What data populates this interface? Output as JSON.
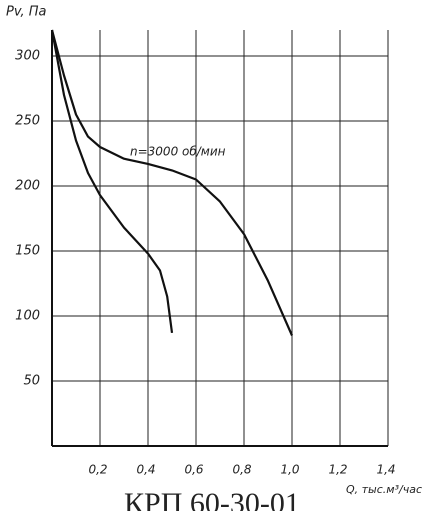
{
  "chart_data": {
    "type": "line",
    "title": "КРП 60-30-01",
    "y_label": "Pv, Па",
    "x_label": "Q, тыс.м³/час",
    "annotation": "n=3000 об/мин",
    "xlim": [
      0,
      1.4
    ],
    "ylim": [
      0,
      320
    ],
    "xticks": [
      {
        "value": 0.2,
        "label": "0,2"
      },
      {
        "value": 0.4,
        "label": "0,4"
      },
      {
        "value": 0.6,
        "label": "0,6"
      },
      {
        "value": 0.8,
        "label": "0,8"
      },
      {
        "value": 1.0,
        "label": "1,0"
      },
      {
        "value": 1.2,
        "label": "1,2"
      },
      {
        "value": 1.4,
        "label": "1,4"
      }
    ],
    "yticks": [
      50,
      100,
      150,
      200,
      250,
      300
    ],
    "grid": true,
    "series": [
      {
        "color": "#111111",
        "x": [
          0,
          0.05,
          0.1,
          0.15,
          0.2,
          0.3,
          0.4,
          0.5,
          0.6,
          0.7,
          0.8,
          0.9,
          1.0
        ],
        "values": [
          320,
          285,
          255,
          238,
          230,
          221,
          217,
          212,
          205,
          188,
          163,
          127,
          85
        ]
      },
      {
        "color": "#111111",
        "x": [
          0,
          0.05,
          0.1,
          0.15,
          0.2,
          0.3,
          0.4,
          0.45,
          0.48,
          0.5
        ],
        "values": [
          320,
          270,
          235,
          210,
          193,
          168,
          148,
          135,
          115,
          87
        ]
      }
    ]
  }
}
